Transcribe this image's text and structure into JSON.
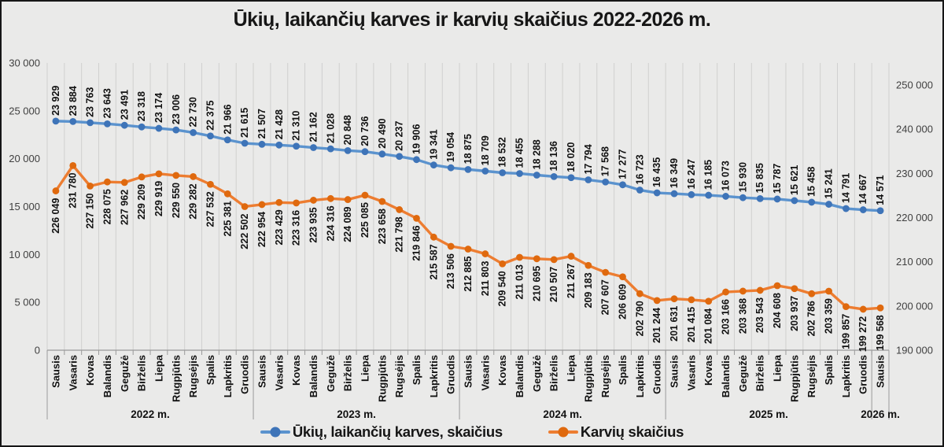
{
  "title": "Ūkių, laikančių karves ir karvių skaičius 2022-2026 m.",
  "chart_data": {
    "type": "line",
    "title": "Ūkių, laikančių karves ir karvių skaičius 2022-2026 m.",
    "legend_position": "bottom",
    "grid": "vertical-only",
    "categories": [
      "Sausis",
      "Vasaris",
      "Kovas",
      "Balandis",
      "Gegužė",
      "Birželis",
      "Liepa",
      "Rugpjūtis",
      "Rugsėjis",
      "Spalis",
      "Lapkritis",
      "Gruodis",
      "Sausis",
      "Vasaris",
      "Kovas",
      "Balandis",
      "Gegužė",
      "Birželis",
      "Liepa",
      "Rugpjūtis",
      "Rugsėjis",
      "Spalis",
      "Lapkritis",
      "Gruodis",
      "Sausis",
      "Vasaris",
      "Kovas",
      "Balandis",
      "Gegužė",
      "Birželis",
      "Liepa",
      "Rugpjūtis",
      "Rugsėjis",
      "Spalis",
      "Lapkritis",
      "Gruodis",
      "Sausis",
      "Vasaris",
      "Kovas",
      "Balandis",
      "Gegužė",
      "Birželis",
      "Liepa",
      "Rugpjūtis",
      "Rugsėjis",
      "Spalis",
      "Lapkritis",
      "Gruodis",
      "Sausis"
    ],
    "year_groups": [
      {
        "label": "2022 m.",
        "months": 12
      },
      {
        "label": "2023 m.",
        "months": 12
      },
      {
        "label": "2024 m.",
        "months": 12
      },
      {
        "label": "2025 m.",
        "months": 12
      },
      {
        "label": "2026 m.",
        "months": 1
      }
    ],
    "left_axis": {
      "min": 0,
      "max": 30000,
      "step": 5000,
      "ticks": [
        {
          "v": 0,
          "label": "0"
        },
        {
          "v": 5000,
          "label": "5 000"
        },
        {
          "v": 10000,
          "label": "10 000"
        },
        {
          "v": 15000,
          "label": "15 000"
        },
        {
          "v": 20000,
          "label": "20 000"
        },
        {
          "v": 25000,
          "label": "25 000"
        },
        {
          "v": 30000,
          "label": "30 000"
        }
      ]
    },
    "right_axis": {
      "min": 190000,
      "max": 255000,
      "step": 10000,
      "ticks": [
        {
          "v": 190000,
          "label": "190 000"
        },
        {
          "v": 200000,
          "label": "200 000"
        },
        {
          "v": 210000,
          "label": "210 000"
        },
        {
          "v": 220000,
          "label": "220 000"
        },
        {
          "v": 230000,
          "label": "230 000"
        },
        {
          "v": 240000,
          "label": "240 000"
        },
        {
          "v": 250000,
          "label": "250 000"
        }
      ]
    },
    "series": [
      {
        "name": "Ūkių, laikančių karves, skaičius",
        "axis": "left",
        "color": "#5b93ce",
        "marker": "#3e74b8",
        "label_position": "above",
        "values": [
          23929,
          23884,
          23763,
          23643,
          23491,
          23318,
          23174,
          23006,
          22730,
          22375,
          21966,
          21615,
          21507,
          21428,
          21310,
          21162,
          21028,
          20848,
          20736,
          20490,
          20237,
          19906,
          19341,
          19054,
          18875,
          18709,
          18532,
          18455,
          18288,
          18136,
          18020,
          17794,
          17568,
          17277,
          16723,
          16435,
          16349,
          16247,
          16185,
          16073,
          15930,
          15835,
          15787,
          15621,
          15458,
          15241,
          14791,
          14667,
          14571
        ]
      },
      {
        "name": "Karvių skaičius",
        "axis": "right",
        "color": "#ed7d31",
        "marker": "#df690e",
        "label_position": "below",
        "values": [
          226049,
          231780,
          227150,
          228075,
          227962,
          229209,
          229919,
          229550,
          229282,
          227532,
          225381,
          222502,
          222954,
          223429,
          223316,
          223935,
          224316,
          224089,
          225085,
          223658,
          221798,
          219846,
          215587,
          213506,
          212885,
          211803,
          209540,
          211013,
          210695,
          210507,
          211267,
          209183,
          207607,
          206609,
          202790,
          201244,
          201631,
          201415,
          201084,
          203166,
          203368,
          203543,
          204608,
          203937,
          202786,
          203359,
          199857,
          199272,
          199568
        ]
      }
    ]
  }
}
